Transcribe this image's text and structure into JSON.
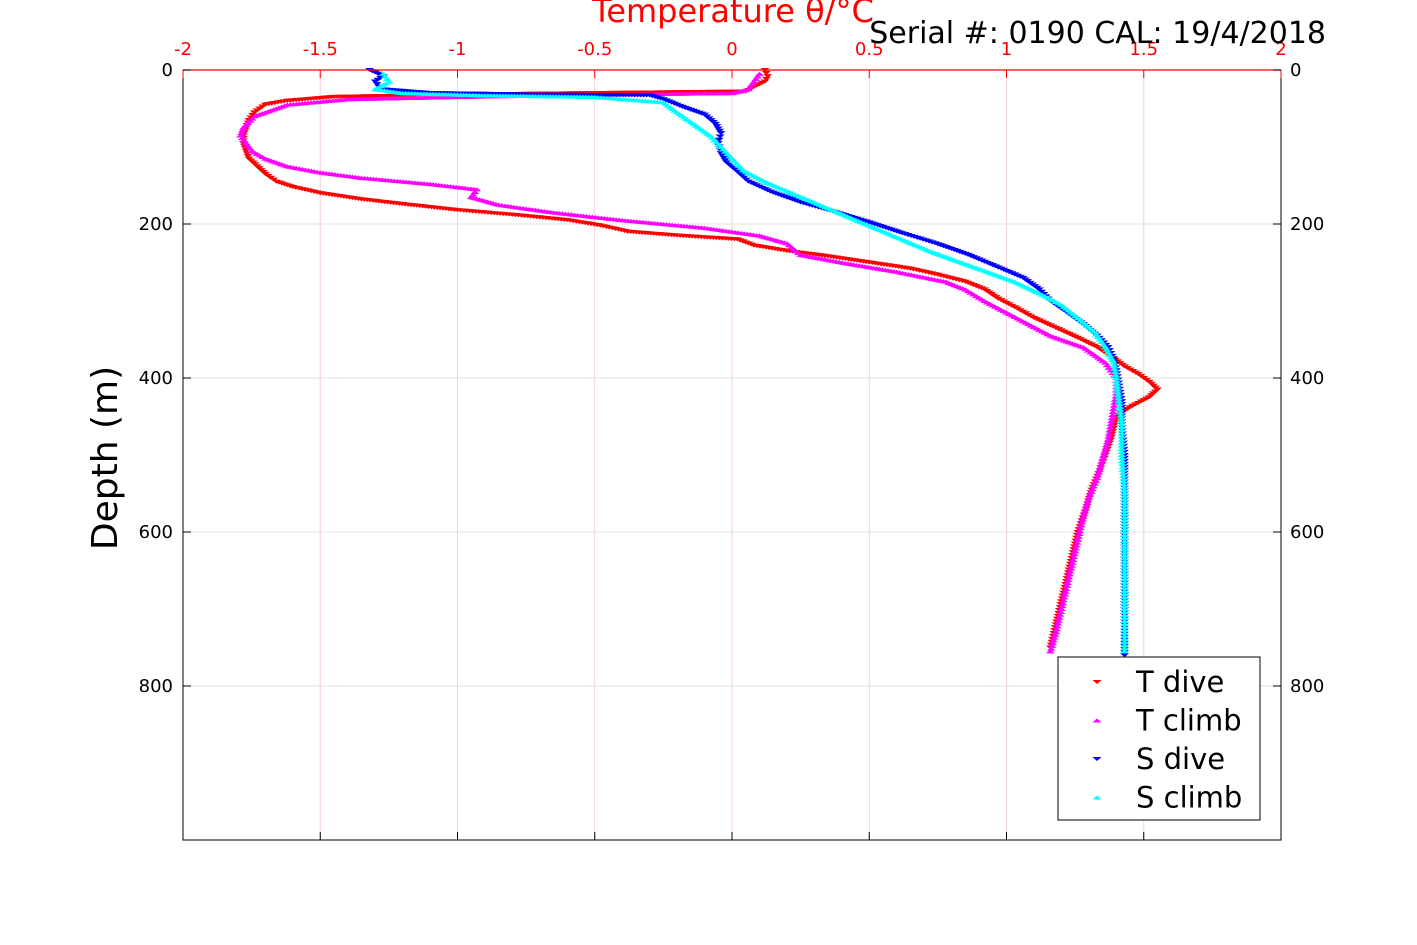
{
  "header": {
    "serial_text": "Serial #: 0190  CAL: 19/4/2018"
  },
  "colors": {
    "t_dive": "#ff0000",
    "t_climb": "#ff00ff",
    "s_dive": "#0000ff",
    "s_climb": "#00ffff",
    "top_axis": "#ff0000",
    "grid": "#e0e0e0",
    "grid_red": "#f6d0d0"
  },
  "chart_data": {
    "type": "scatter",
    "title": "",
    "xlabel": "Temperature θ/°C",
    "ylabel": "Depth (m)",
    "x_axis_position": "top",
    "y_axis_reversed": true,
    "xlim": [
      -2,
      2
    ],
    "ylim": [
      0,
      1000
    ],
    "x_ticks": [
      "-2",
      "-1.5",
      "-1",
      "-0.5",
      "0",
      "0.5",
      "1",
      "1.5",
      "2"
    ],
    "y_ticks": [
      "0",
      "200",
      "400",
      "600",
      "800"
    ],
    "y_tick_values": [
      0,
      200,
      400,
      600,
      800
    ],
    "grid": true,
    "legend_position": "bottom-right",
    "series": [
      {
        "name": "T dive",
        "marker": "triangle-down",
        "color": "#ff0000",
        "points": [
          [
            0.12,
            0
          ],
          [
            0.13,
            8
          ],
          [
            0.12,
            15
          ],
          [
            0.08,
            22
          ],
          [
            0.05,
            28
          ],
          [
            -0.5,
            30
          ],
          [
            -1.0,
            32
          ],
          [
            -1.45,
            35
          ],
          [
            -1.62,
            40
          ],
          [
            -1.7,
            45
          ],
          [
            -1.74,
            55
          ],
          [
            -1.76,
            65
          ],
          [
            -1.77,
            75
          ],
          [
            -1.78,
            85
          ],
          [
            -1.78,
            95
          ],
          [
            -1.77,
            105
          ],
          [
            -1.76,
            115
          ],
          [
            -1.73,
            125
          ],
          [
            -1.7,
            135
          ],
          [
            -1.66,
            145
          ],
          [
            -1.6,
            152
          ],
          [
            -1.5,
            160
          ],
          [
            -1.35,
            168
          ],
          [
            -1.18,
            175
          ],
          [
            -1.0,
            182
          ],
          [
            -0.8,
            188
          ],
          [
            -0.6,
            195
          ],
          [
            -0.48,
            202
          ],
          [
            -0.38,
            210
          ],
          [
            -0.2,
            215
          ],
          [
            0.02,
            220
          ],
          [
            0.08,
            228
          ],
          [
            0.2,
            235
          ],
          [
            0.35,
            242
          ],
          [
            0.5,
            250
          ],
          [
            0.65,
            258
          ],
          [
            0.75,
            266
          ],
          [
            0.85,
            275
          ],
          [
            0.92,
            285
          ],
          [
            0.97,
            297
          ],
          [
            1.04,
            310
          ],
          [
            1.1,
            322
          ],
          [
            1.18,
            335
          ],
          [
            1.26,
            348
          ],
          [
            1.33,
            360
          ],
          [
            1.38,
            372
          ],
          [
            1.43,
            385
          ],
          [
            1.48,
            395
          ],
          [
            1.52,
            405
          ],
          [
            1.55,
            415
          ],
          [
            1.52,
            425
          ],
          [
            1.45,
            438
          ],
          [
            1.4,
            450
          ],
          [
            1.39,
            465
          ],
          [
            1.38,
            480
          ],
          [
            1.36,
            500
          ],
          [
            1.34,
            520
          ],
          [
            1.31,
            545
          ],
          [
            1.29,
            570
          ],
          [
            1.26,
            600
          ],
          [
            1.24,
            630
          ],
          [
            1.22,
            660
          ],
          [
            1.2,
            690
          ],
          [
            1.18,
            720
          ],
          [
            1.16,
            750
          ]
        ]
      },
      {
        "name": "T climb",
        "marker": "triangle-up",
        "color": "#ff00ff",
        "points": [
          [
            1.16,
            755
          ],
          [
            1.18,
            730
          ],
          [
            1.2,
            700
          ],
          [
            1.22,
            670
          ],
          [
            1.24,
            640
          ],
          [
            1.26,
            610
          ],
          [
            1.28,
            580
          ],
          [
            1.3,
            555
          ],
          [
            1.33,
            530
          ],
          [
            1.35,
            505
          ],
          [
            1.37,
            480
          ],
          [
            1.38,
            460
          ],
          [
            1.39,
            440
          ],
          [
            1.4,
            420
          ],
          [
            1.4,
            400
          ],
          [
            1.36,
            380
          ],
          [
            1.28,
            360
          ],
          [
            1.16,
            345
          ],
          [
            1.08,
            330
          ],
          [
            1.0,
            315
          ],
          [
            0.92,
            300
          ],
          [
            0.85,
            285
          ],
          [
            0.78,
            275
          ],
          [
            0.6,
            262
          ],
          [
            0.4,
            250
          ],
          [
            0.25,
            240
          ],
          [
            0.2,
            225
          ],
          [
            0.1,
            215
          ],
          [
            -0.1,
            205
          ],
          [
            -0.4,
            195
          ],
          [
            -0.65,
            185
          ],
          [
            -0.85,
            175
          ],
          [
            -0.95,
            165
          ],
          [
            -0.93,
            155
          ],
          [
            -1.1,
            148
          ],
          [
            -1.35,
            140
          ],
          [
            -1.5,
            133
          ],
          [
            -1.62,
            125
          ],
          [
            -1.7,
            115
          ],
          [
            -1.75,
            105
          ],
          [
            -1.77,
            95
          ],
          [
            -1.79,
            85
          ],
          [
            -1.78,
            75
          ],
          [
            -1.74,
            60
          ],
          [
            -1.62,
            45
          ],
          [
            -1.4,
            38
          ],
          [
            -1.0,
            35
          ],
          [
            -0.5,
            32
          ],
          [
            0.0,
            30
          ],
          [
            0.06,
            25
          ],
          [
            0.08,
            15
          ],
          [
            0.1,
            5
          ]
        ]
      },
      {
        "name": "S dive",
        "marker": "triangle-down",
        "color": "#0000ff",
        "points": [
          [
            -1.32,
            0
          ],
          [
            -1.27,
            8
          ],
          [
            -1.3,
            15
          ],
          [
            -1.28,
            25
          ],
          [
            -1.1,
            30
          ],
          [
            -0.7,
            32
          ],
          [
            -0.3,
            33
          ],
          [
            -0.25,
            38
          ],
          [
            -0.18,
            48
          ],
          [
            -0.1,
            58
          ],
          [
            -0.06,
            70
          ],
          [
            -0.04,
            82
          ],
          [
            -0.05,
            95
          ],
          [
            -0.04,
            108
          ],
          [
            -0.02,
            120
          ],
          [
            0.02,
            132
          ],
          [
            0.06,
            145
          ],
          [
            0.14,
            158
          ],
          [
            0.25,
            172
          ],
          [
            0.38,
            185
          ],
          [
            0.5,
            198
          ],
          [
            0.62,
            212
          ],
          [
            0.74,
            225
          ],
          [
            0.86,
            240
          ],
          [
            0.96,
            255
          ],
          [
            1.06,
            270
          ],
          [
            1.12,
            285
          ],
          [
            1.16,
            300
          ],
          [
            1.22,
            315
          ],
          [
            1.28,
            330
          ],
          [
            1.33,
            345
          ],
          [
            1.37,
            360
          ],
          [
            1.39,
            375
          ],
          [
            1.4,
            390
          ],
          [
            1.41,
            410
          ],
          [
            1.42,
            430
          ],
          [
            1.42,
            460
          ],
          [
            1.43,
            500
          ],
          [
            1.43,
            550
          ],
          [
            1.43,
            600
          ],
          [
            1.43,
            650
          ],
          [
            1.43,
            700
          ],
          [
            1.43,
            760
          ]
        ]
      },
      {
        "name": "S climb",
        "marker": "triangle-up",
        "color": "#00ffff",
        "points": [
          [
            1.43,
            755
          ],
          [
            1.43,
            700
          ],
          [
            1.43,
            650
          ],
          [
            1.43,
            600
          ],
          [
            1.43,
            550
          ],
          [
            1.42,
            500
          ],
          [
            1.42,
            460
          ],
          [
            1.41,
            430
          ],
          [
            1.4,
            400
          ],
          [
            1.39,
            380
          ],
          [
            1.36,
            360
          ],
          [
            1.32,
            340
          ],
          [
            1.26,
            322
          ],
          [
            1.2,
            305
          ],
          [
            1.12,
            290
          ],
          [
            1.03,
            275
          ],
          [
            0.93,
            262
          ],
          [
            0.82,
            248
          ],
          [
            0.72,
            235
          ],
          [
            0.62,
            220
          ],
          [
            0.52,
            205
          ],
          [
            0.42,
            190
          ],
          [
            0.32,
            175
          ],
          [
            0.22,
            160
          ],
          [
            0.12,
            145
          ],
          [
            0.04,
            130
          ],
          [
            0.0,
            115
          ],
          [
            -0.04,
            100
          ],
          [
            -0.08,
            85
          ],
          [
            -0.14,
            70
          ],
          [
            -0.2,
            55
          ],
          [
            -0.25,
            42
          ],
          [
            -0.5,
            35
          ],
          [
            -0.9,
            33
          ],
          [
            -1.2,
            30
          ],
          [
            -1.3,
            25
          ],
          [
            -1.25,
            15
          ],
          [
            -1.27,
            5
          ]
        ]
      }
    ]
  }
}
